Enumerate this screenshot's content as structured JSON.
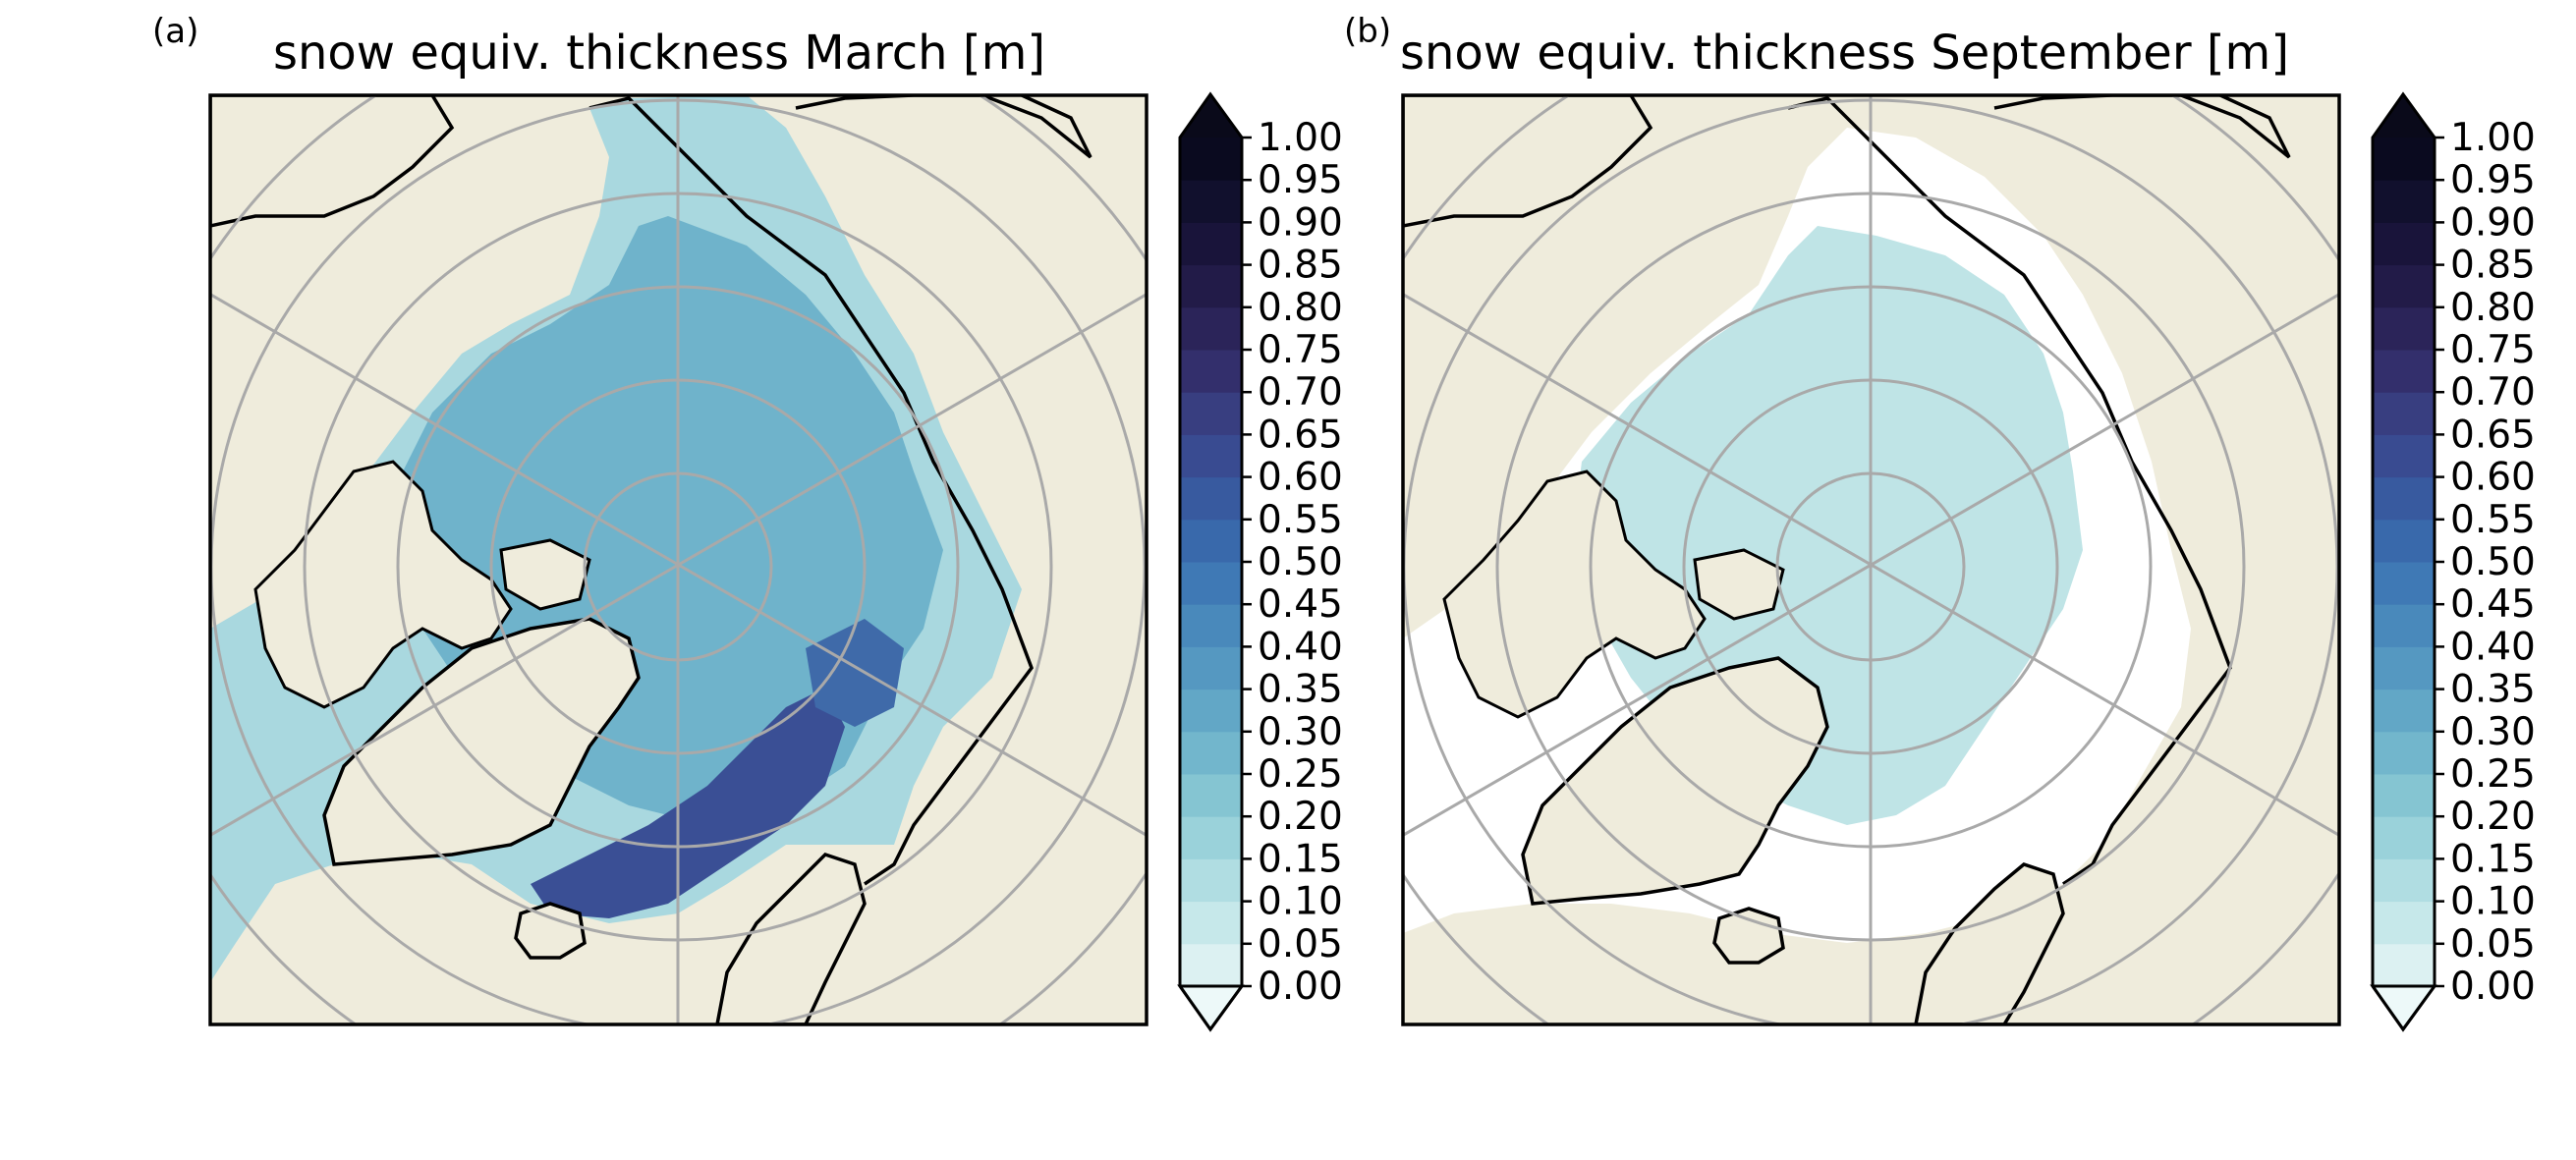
{
  "figure": {
    "panels": [
      {
        "letter": "(a)",
        "title": "snow equiv. thickness March [m]"
      },
      {
        "letter": "(b)",
        "title": "snow equiv. thickness September [m]"
      }
    ]
  },
  "colors": {
    "land": "#efecdc",
    "grid": "#a9a9a9",
    "coast": "#000000",
    "ocean_no_ice": "#ffffff"
  },
  "colorbar": {
    "ticks": [
      "1.00",
      "0.95",
      "0.90",
      "0.85",
      "0.80",
      "0.75",
      "0.70",
      "0.65",
      "0.60",
      "0.55",
      "0.50",
      "0.45",
      "0.40",
      "0.35",
      "0.30",
      "0.25",
      "0.20",
      "0.15",
      "0.10",
      "0.05",
      "0.00"
    ],
    "levels_colors": [
      "#dcf1f2",
      "#c6e8ea",
      "#b0dde2",
      "#9ad2da",
      "#85c5d2",
      "#72b6cc",
      "#62a7c6",
      "#5598c1",
      "#4989bb",
      "#3f79b5",
      "#3969ab",
      "#385a9f",
      "#394b91",
      "#383e80",
      "#332f6c",
      "#2b2459",
      "#221b48",
      "#19143a",
      "#11102d",
      "#0a0a1f"
    ],
    "extend_min_color": "#edf9f9",
    "extend_max_color": "#0a0a1a"
  }
}
